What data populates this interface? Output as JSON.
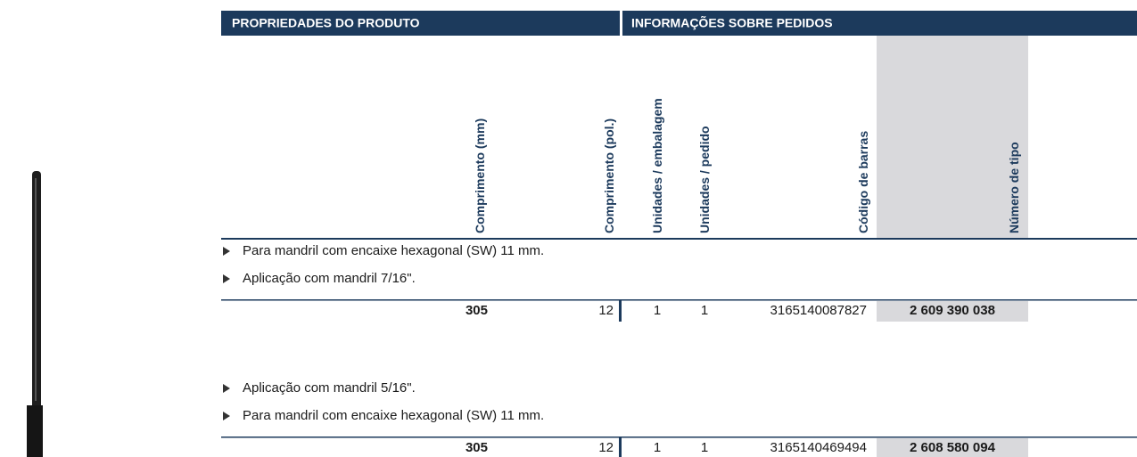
{
  "header": {
    "left": "PROPRIEDADES DO PRODUTO",
    "right": "INFORMAÇÕES SOBRE PEDIDOS"
  },
  "columns": [
    "Comprimento (mm)",
    "Comprimento (pol.)",
    "Unidades / embalagem",
    "Unidades / pedido",
    "Código de barras",
    "Número de tipo"
  ],
  "groups": [
    {
      "notes": [
        "Para mandril com encaixe hexagonal (SW) 11 mm.",
        "Aplicação com mandril 7/16\"."
      ],
      "row": [
        "305",
        "12",
        "1",
        "1",
        "3165140087827",
        "2 609 390 038"
      ]
    },
    {
      "notes": [
        "Aplicação com mandril 5/16\".",
        "Para mandril com encaixe hexagonal (SW) 11 mm."
      ],
      "row": [
        "305",
        "12",
        "1",
        "1",
        "3165140469494",
        "2 608 580 094"
      ]
    }
  ]
}
